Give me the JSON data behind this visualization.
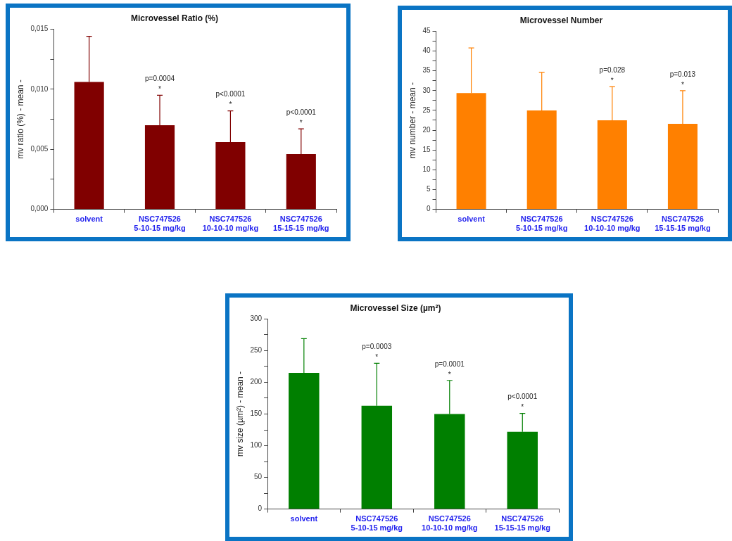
{
  "chart_data": [
    {
      "type": "bar",
      "title": "Microvessel Ratio (%)",
      "ylabel": "mv ratio (%) - mean -",
      "categories": [
        "solvent",
        "NSC747526\n5-10-15 mg/kg",
        "NSC747526\n10-10-10 mg/kg",
        "NSC747526\n15-15-15 mg/kg"
      ],
      "series": [
        {
          "color": "#800000",
          "values": [
            0.0106,
            0.007,
            0.0056,
            0.0046
          ],
          "errors": [
            0.0038,
            0.0025,
            0.0026,
            0.0021
          ]
        }
      ],
      "ylim": [
        0,
        0.015
      ],
      "yticks": [
        {
          "value": 0,
          "label": "0,000"
        },
        {
          "value": 0.0025,
          "label": null
        },
        {
          "value": 0.005,
          "label": "0,005"
        },
        {
          "value": 0.0075,
          "label": null
        },
        {
          "value": 0.01,
          "label": "0,010"
        },
        {
          "value": 0.0125,
          "label": null
        },
        {
          "value": 0.015,
          "label": "0,015"
        }
      ],
      "grid": false,
      "legend": false,
      "annotations": [
        "p=0.0004",
        "*",
        "p<0.0001",
        "*",
        "p<0.0001",
        "*"
      ]
    },
    {
      "type": "bar",
      "title": "Microvessel Number",
      "ylabel": "mv number - mean -",
      "categories": [
        "solvent",
        "NSC747526\n5-10-15 mg/kg",
        "NSC747526\n10-10-10 mg/kg",
        "NSC747526\n15-15-15 mg/kg"
      ],
      "series": [
        {
          "color": "#ff8000",
          "values": [
            29.4,
            25.0,
            22.5,
            21.6
          ],
          "errors": [
            11.4,
            9.6,
            8.5,
            8.4
          ]
        }
      ],
      "ylim": [
        0,
        45
      ],
      "yticks": [
        0,
        {
          "value": 2.5,
          "label": null
        },
        5,
        {
          "value": 7.5,
          "label": null
        },
        10,
        {
          "value": 12.5,
          "label": null
        },
        15,
        {
          "value": 17.5,
          "label": null
        },
        20,
        {
          "value": 22.5,
          "label": null
        },
        25,
        {
          "value": 27.5,
          "label": null
        },
        30,
        {
          "value": 32.5,
          "label": null
        },
        35,
        {
          "value": 37.5,
          "label": null
        },
        40,
        {
          "value": 42.5,
          "label": null
        },
        45
      ],
      "grid": false,
      "legend": false,
      "annotations": [
        "p=0.028",
        "*",
        "p=0.013",
        "*"
      ]
    },
    {
      "type": "bar",
      "title": "Microvessel Size (µm²)",
      "ylabel": "mv size (µm²) - mean -",
      "categories": [
        "solvent",
        "NSC747526\n5-10-15 mg/kg",
        "NSC747526\n10-10-10 mg/kg",
        "NSC747526\n15-15-15 mg/kg"
      ],
      "series": [
        {
          "color": "#007f00",
          "values": [
            215,
            163,
            150,
            122
          ],
          "errors": [
            54,
            67,
            53,
            29
          ]
        }
      ],
      "ylim": [
        0,
        300
      ],
      "yticks": [
        0,
        {
          "value": 25,
          "label": null
        },
        50,
        {
          "value": 75,
          "label": null
        },
        100,
        {
          "value": 125,
          "label": null
        },
        150,
        {
          "value": 175,
          "label": null
        },
        200,
        {
          "value": 225,
          "label": null
        },
        250,
        {
          "value": 275,
          "label": null
        },
        300
      ],
      "grid": false,
      "legend": false,
      "annotations": [
        "p=0.0003",
        "*",
        "p=0.0001",
        "*",
        "p<0.0001",
        "*"
      ]
    }
  ]
}
